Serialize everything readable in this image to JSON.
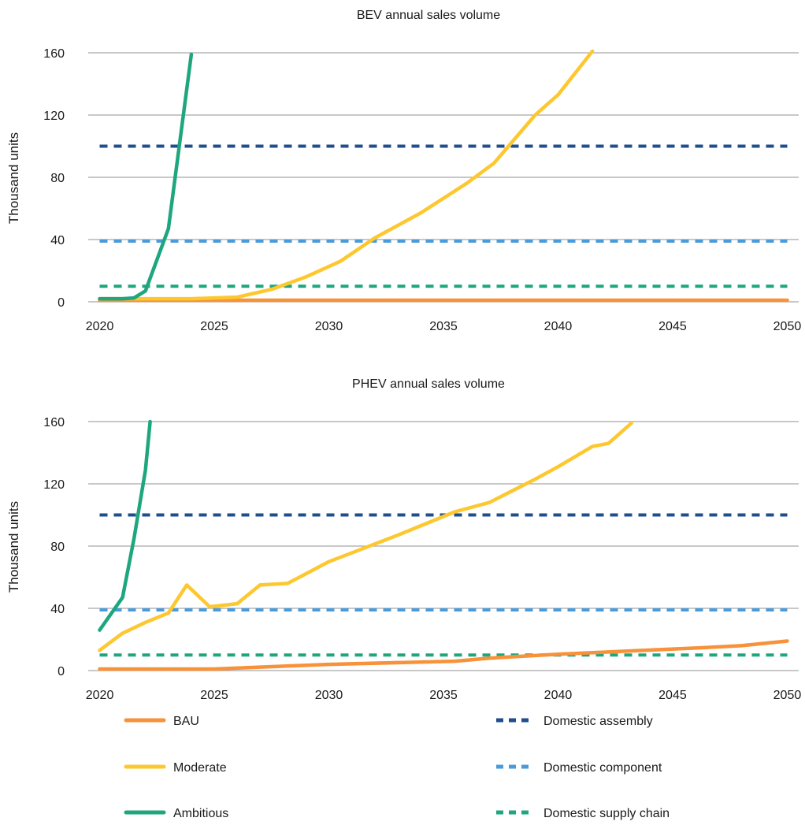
{
  "chart_data": [
    {
      "type": "line",
      "title": "BEV annual sales volume",
      "xlabel": "",
      "ylabel": "Thousand units",
      "xlim": [
        2019.5,
        2050.5
      ],
      "ylim": [
        0,
        160
      ],
      "xticks": [
        2020,
        2025,
        2030,
        2035,
        2040,
        2045,
        2050
      ],
      "yticks": [
        0,
        40,
        80,
        120,
        160
      ],
      "grid": true,
      "series": [
        {
          "name": "BAU",
          "style": "solid",
          "color": "#F7923A",
          "points": [
            [
              2020,
              1
            ],
            [
              2050,
              1
            ]
          ]
        },
        {
          "name": "Moderate",
          "style": "solid",
          "color": "#FDC82F",
          "points": [
            [
              2020,
              2
            ],
            [
              2022,
              2
            ],
            [
              2024,
              2
            ],
            [
              2026,
              3
            ],
            [
              2027.5,
              8
            ],
            [
              2029,
              16
            ],
            [
              2030.5,
              26
            ],
            [
              2032,
              41
            ],
            [
              2034,
              57
            ],
            [
              2036,
              76
            ],
            [
              2037.2,
              89
            ],
            [
              2039,
              120
            ],
            [
              2040,
              133
            ],
            [
              2041.5,
              161
            ]
          ]
        },
        {
          "name": "Ambitious",
          "style": "solid",
          "color": "#1EA67E",
          "points": [
            [
              2020,
              2
            ],
            [
              2021,
              2
            ],
            [
              2021.5,
              2.5
            ],
            [
              2022,
              7
            ],
            [
              2023,
              47
            ],
            [
              2024,
              159
            ]
          ]
        },
        {
          "name": "Domestic assembly",
          "style": "dashed",
          "color": "#1F4E8C",
          "points": [
            [
              2020,
              100
            ],
            [
              2050,
              100
            ]
          ]
        },
        {
          "name": "Domestic component",
          "style": "dashed",
          "color": "#4A9BDA",
          "points": [
            [
              2020,
              39
            ],
            [
              2050,
              39
            ]
          ]
        },
        {
          "name": "Domestic supply chain",
          "style": "dashed",
          "color": "#1EA67E",
          "points": [
            [
              2020,
              10
            ],
            [
              2050,
              10
            ]
          ]
        }
      ]
    },
    {
      "type": "line",
      "title": "PHEV annual sales volume",
      "xlabel": "",
      "ylabel": "Thousand units",
      "xlim": [
        2019.5,
        2050.5
      ],
      "ylim": [
        0,
        160
      ],
      "xticks": [
        2020,
        2025,
        2030,
        2035,
        2040,
        2045,
        2050
      ],
      "yticks": [
        0,
        40,
        80,
        120,
        160
      ],
      "grid": true,
      "series": [
        {
          "name": "BAU",
          "style": "solid",
          "color": "#F7923A",
          "points": [
            [
              2020,
              1
            ],
            [
              2025,
              1
            ],
            [
              2030,
              4
            ],
            [
              2035.5,
              6
            ],
            [
              2037,
              8
            ],
            [
              2040,
              10.5
            ],
            [
              2043,
              12.5
            ],
            [
              2046,
              14.5
            ],
            [
              2048,
              16
            ],
            [
              2050,
              19
            ]
          ]
        },
        {
          "name": "Moderate",
          "style": "solid",
          "color": "#FDC82F",
          "points": [
            [
              2020,
              13
            ],
            [
              2021,
              24
            ],
            [
              2022,
              31
            ],
            [
              2023,
              37
            ],
            [
              2023.8,
              55
            ],
            [
              2024.8,
              41
            ],
            [
              2026,
              43
            ],
            [
              2027,
              55
            ],
            [
              2028.2,
              56
            ],
            [
              2030,
              70
            ],
            [
              2033,
              87
            ],
            [
              2035.5,
              102
            ],
            [
              2037,
              108
            ],
            [
              2039,
              123
            ],
            [
              2040,
              131
            ],
            [
              2041.5,
              144
            ],
            [
              2042.2,
              146
            ],
            [
              2043.2,
              159
            ]
          ]
        },
        {
          "name": "Ambitious",
          "style": "solid",
          "color": "#1EA67E",
          "points": [
            [
              2020,
              26
            ],
            [
              2021,
              47
            ],
            [
              2021.5,
              85
            ],
            [
              2022,
              129
            ],
            [
              2022.2,
              160
            ]
          ]
        },
        {
          "name": "Domestic assembly",
          "style": "dashed",
          "color": "#1F4E8C",
          "points": [
            [
              2020,
              100
            ],
            [
              2050,
              100
            ]
          ]
        },
        {
          "name": "Domestic component",
          "style": "dashed",
          "color": "#4A9BDA",
          "points": [
            [
              2020,
              39
            ],
            [
              2050,
              39
            ]
          ]
        },
        {
          "name": "Domestic supply chain",
          "style": "dashed",
          "color": "#1EA67E",
          "points": [
            [
              2020,
              10
            ],
            [
              2050,
              10
            ]
          ]
        }
      ]
    }
  ],
  "legend": {
    "placement": "bottom",
    "items": [
      {
        "label": "BAU",
        "style": "solid",
        "color": "#F7923A"
      },
      {
        "label": "Moderate",
        "style": "solid",
        "color": "#FDC82F"
      },
      {
        "label": "Ambitious",
        "style": "solid",
        "color": "#1EA67E"
      },
      {
        "label": "Domestic assembly",
        "style": "dashed",
        "color": "#1F4E8C"
      },
      {
        "label": "Domestic component",
        "style": "dashed",
        "color": "#4A9BDA"
      },
      {
        "label": "Domestic supply chain",
        "style": "dashed",
        "color": "#1EA67E"
      }
    ]
  },
  "colors": {
    "gridline": "#A6A6A6",
    "text": "#1a1a1a"
  }
}
